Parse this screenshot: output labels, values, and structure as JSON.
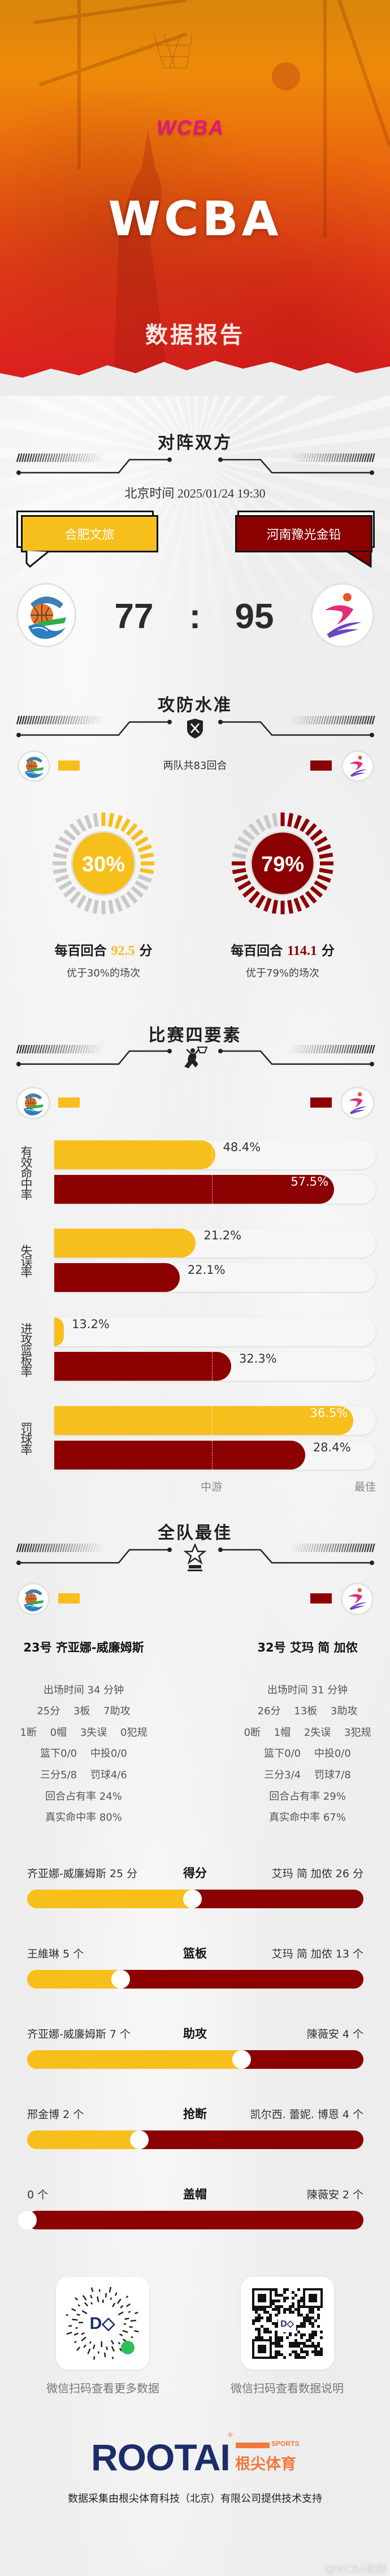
{
  "colors": {
    "home": "#F7BF1C",
    "away": "#8B0000",
    "inactive_tick": "#c9c9c9"
  },
  "header": {
    "logo_text": "WCBA",
    "title": "WCBA",
    "subtitle": "数据报告"
  },
  "matchup": {
    "title": "对阵双方",
    "datetime": "北京时间 2025/01/24 19:30",
    "separator": ":",
    "home": {
      "name": "合肥文旅",
      "score": "77"
    },
    "away": {
      "name": "河南豫光金铅",
      "score": "95"
    }
  },
  "efficiency": {
    "title": "攻防水准",
    "icon": "shield-swords-icon",
    "possessions": "两队共83回合",
    "teams": [
      {
        "percent": 30,
        "percent_label": "30%",
        "rating_prefix": "每百回合",
        "rating": "92.5",
        "rating_unit": "分",
        "better_than": "优于30%的场次"
      },
      {
        "percent": 79,
        "percent_label": "79%",
        "rating_prefix": "每百回合",
        "rating": "114.1",
        "rating_unit": "分",
        "better_than": "优于79%的场次"
      }
    ]
  },
  "four_factors": {
    "title": "比赛四要素",
    "icon": "basketball-dunk-icon",
    "factors": [
      {
        "label": "有效命中率",
        "home": {
          "value": "48.4%",
          "fill": 0.5
        },
        "away": {
          "value": "57.5%",
          "fill": 0.87
        }
      },
      {
        "label": "失误率",
        "home": {
          "value": "21.2%",
          "fill": 0.44
        },
        "away": {
          "value": "22.1%",
          "fill": 0.39
        }
      },
      {
        "label": "进攻篮板率",
        "home": {
          "value": "13.2%",
          "fill": 0.03
        },
        "away": {
          "value": "32.3%",
          "fill": 0.55
        }
      },
      {
        "label": "罚球率",
        "home": {
          "value": "36.5%",
          "fill": 0.93
        },
        "away": {
          "value": "28.4%",
          "fill": 0.78
        }
      }
    ],
    "scale": {
      "mid_label": "中游",
      "mid_position": 0.49,
      "best_label": "最佳"
    }
  },
  "best": {
    "title": "全队最佳",
    "icon": "trophy-star-icon",
    "players": [
      {
        "name": "23号 齐亚娜-威廉姆斯",
        "lines": [
          "出场时间 34 分钟",
          "25分　 3板　 7助攻",
          "1断　 0帽　 3失误　 0犯规",
          "篮下0/0　 中投0/0",
          "三分5/8　 罚球4/6",
          "回合占有率 24%",
          "真实命中率 80%"
        ]
      },
      {
        "name": "32号 艾玛 简 加侬",
        "lines": [
          "出场时间 31 分钟",
          "26分　 13板　 3助攻",
          "0断　 1帽　 2失误　 3犯规",
          "篮下0/0　 中投0/0",
          "三分3/4　 罚球7/8",
          "回合占有率 29%",
          "真实命中率 67%"
        ]
      }
    ],
    "leaders": [
      {
        "category": "得分",
        "home": "齐亚娜-威廉姆斯 25 分",
        "away": "艾玛 简 加侬 26 分",
        "home_value": 25,
        "away_value": 26
      },
      {
        "category": "篮板",
        "home": "王維琳 5 个",
        "away": "艾玛 简 加侬 13 个",
        "home_value": 5,
        "away_value": 13
      },
      {
        "category": "助攻",
        "home": "齐亚娜-威廉姆斯 7 个",
        "away": "陳薇安 4 个",
        "home_value": 7,
        "away_value": 4
      },
      {
        "category": "抢断",
        "home": "邢金博 2 个",
        "away": "凯尔西. 蕾妮. 博恩 4 个",
        "home_value": 2,
        "away_value": 4
      },
      {
        "category": "盖帽",
        "home": "0 个",
        "away": "陳薇安 2 个",
        "home_value": 0,
        "away_value": 2
      }
    ]
  },
  "footer": {
    "qr_left_caption": "微信扫码查看更多数据",
    "qr_right_caption": "微信扫码查看数据说明",
    "brand": "ROOTAI",
    "brand_sports": "SPORTS",
    "brand_cn": "根尖体育",
    "support": "数据采集由根尖体育科技（北京）有限公司提供技术支持",
    "watermark": "@WCBA联赛"
  }
}
